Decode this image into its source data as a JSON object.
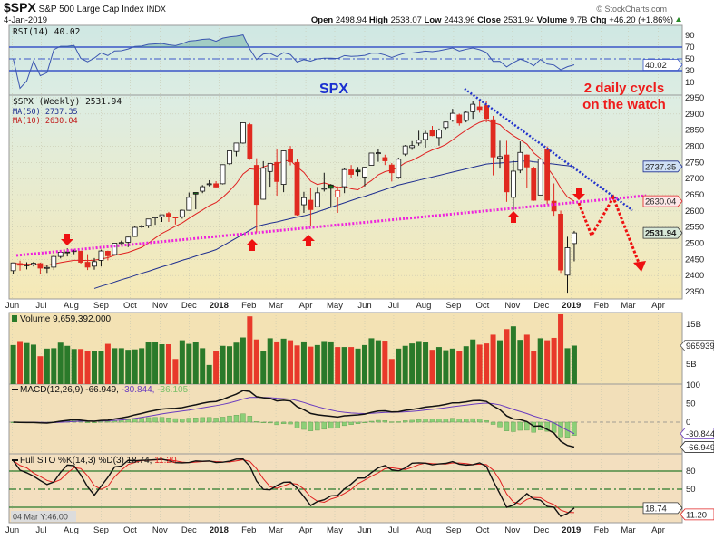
{
  "header": {
    "symbol": "$SPX",
    "name": "S&P 500 Large Cap Index",
    "exchange": "INDX",
    "date": "4-Jan-2019",
    "brand": "© StockCharts.com",
    "open_label": "Open",
    "open": "2498.94",
    "high_label": "High",
    "high": "2538.07",
    "low_label": "Low",
    "low": "2443.96",
    "close_label": "Close",
    "close": "2531.94",
    "volume_label": "Volume",
    "volume": "9.7B",
    "chg_label": "Chg",
    "chg": "+46.20 (+1.86%)"
  },
  "annotations": {
    "spx": "SPX",
    "note_line1": "2 daily cycls",
    "note_line2": "on the watch"
  },
  "colors": {
    "up": "#2a7a2a",
    "down": "#e8392a",
    "ma50": "#1f2f8f",
    "ma10": "#e02020",
    "trend_support": "#ee22dd",
    "trend_resist": "#2233cc",
    "rsi": "#3a55b0",
    "arrow": "#ee1111"
  },
  "legends": {
    "rsi": "RSI(14) 40.02",
    "price": "$SPX (Weekly) 2531.94",
    "ma50": "MA(50) 2737.35",
    "ma10": "MA(10) 2630.04",
    "volume": "Volume 9,659,392,000",
    "macd": "MACD(12,26,9) -66.949,",
    "macd_signal": "-30.844,",
    "macd_hist": "-36.105",
    "sto": "Full STO %K(14,3) %D(3) 18.74,",
    "sto_d": "11.20"
  },
  "tags": {
    "rsi": "40.02",
    "ma50": "2737.35",
    "ma10": "2630.04",
    "close": "2531.94",
    "volume": "9659392000",
    "macd_signal": "-30.844",
    "macd": "-66.949",
    "sto_k": "18.74",
    "sto_d": "11.20"
  },
  "crosshair_readout": "04 Mar Y:46.00",
  "chart_data": {
    "type": "candlestick",
    "period": "weekly",
    "columns": [
      "date",
      "open",
      "high",
      "low",
      "close",
      "volume_billions"
    ],
    "candles": [
      [
        "2017-06-02",
        2415,
        2440,
        2405,
        2439,
        9.8
      ],
      [
        "2017-06-09",
        2437,
        2446,
        2415,
        2432,
        10.8
      ],
      [
        "2017-06-16",
        2432,
        2441,
        2419,
        2433,
        10.3
      ],
      [
        "2017-06-23",
        2434,
        2442,
        2428,
        2438,
        9.9
      ],
      [
        "2017-06-30",
        2437,
        2440,
        2406,
        2423,
        7.0
      ],
      [
        "2017-07-07",
        2425,
        2431,
        2408,
        2425,
        8.9
      ],
      [
        "2017-07-14",
        2426,
        2463,
        2417,
        2459,
        9.0
      ],
      [
        "2017-07-21",
        2459,
        2478,
        2453,
        2472,
        10.4
      ],
      [
        "2017-07-28",
        2473,
        2484,
        2459,
        2472,
        9.6
      ],
      [
        "2017-08-04",
        2477,
        2480,
        2466,
        2476,
        8.8
      ],
      [
        "2017-08-11",
        2475,
        2477,
        2437,
        2441,
        8.8
      ],
      [
        "2017-08-18",
        2441,
        2466,
        2417,
        2426,
        8.3
      ],
      [
        "2017-08-25",
        2429,
        2454,
        2418,
        2443,
        8.4
      ],
      [
        "2017-09-01",
        2447,
        2480,
        2428,
        2476,
        8.3
      ],
      [
        "2017-09-08",
        2475,
        2477,
        2447,
        2461,
        10.1
      ],
      [
        "2017-09-15",
        2465,
        2500,
        2464,
        2500,
        9.0
      ],
      [
        "2017-09-22",
        2500,
        2508,
        2496,
        2502,
        9.0
      ],
      [
        "2017-09-29",
        2503,
        2520,
        2488,
        2519,
        8.6
      ],
      [
        "2017-10-06",
        2521,
        2553,
        2520,
        2549,
        8.7
      ],
      [
        "2017-10-13",
        2553,
        2557,
        2547,
        2553,
        9.0
      ],
      [
        "2017-10-20",
        2555,
        2575,
        2547,
        2575,
        10.6
      ],
      [
        "2017-10-27",
        2580,
        2582,
        2557,
        2581,
        10.5
      ],
      [
        "2017-11-03",
        2582,
        2588,
        2566,
        2588,
        10.0
      ],
      [
        "2017-11-10",
        2592,
        2597,
        2566,
        2582,
        10.0
      ],
      [
        "2017-11-17",
        2581,
        2582,
        2558,
        2579,
        6.3
      ],
      [
        "2017-11-24",
        2582,
        2604,
        2576,
        2602,
        11.0
      ],
      [
        "2017-12-01",
        2602,
        2657,
        2601,
        2642,
        10.1
      ],
      [
        "2017-12-08",
        2657,
        2657,
        2605,
        2652,
        10.6
      ],
      [
        "2017-12-15",
        2661,
        2680,
        2655,
        2675,
        9.0
      ],
      [
        "2017-12-22",
        2684,
        2695,
        2676,
        2684,
        4.8
      ],
      [
        "2017-12-29",
        2684,
        2692,
        2673,
        2674,
        8.3
      ],
      [
        "2018-01-05",
        2684,
        2744,
        2682,
        2743,
        9.6
      ],
      [
        "2018-01-12",
        2746,
        2787,
        2742,
        2786,
        9.5
      ],
      [
        "2018-01-19",
        2784,
        2810,
        2769,
        2810,
        10.4
      ],
      [
        "2018-01-26",
        2810,
        2873,
        2808,
        2873,
        11.7
      ],
      [
        "2018-02-02",
        2867,
        2872,
        2758,
        2762,
        17.0
      ],
      [
        "2018-02-09",
        2741,
        2763,
        2533,
        2620,
        11.2
      ],
      [
        "2018-02-16",
        2636,
        2754,
        2635,
        2732,
        8.4
      ],
      [
        "2018-02-23",
        2722,
        2747,
        2675,
        2747,
        11.5
      ],
      [
        "2018-03-02",
        2750,
        2790,
        2647,
        2691,
        10.7
      ],
      [
        "2018-03-09",
        2682,
        2787,
        2658,
        2786,
        11.4
      ],
      [
        "2018-03-16",
        2790,
        2801,
        2741,
        2752,
        11.0
      ],
      [
        "2018-03-23",
        2750,
        2762,
        2585,
        2588,
        9.7
      ],
      [
        "2018-03-29",
        2619,
        2659,
        2594,
        2641,
        10.7
      ],
      [
        "2018-04-06",
        2633,
        2672,
        2553,
        2604,
        9.4
      ],
      [
        "2018-04-13",
        2613,
        2674,
        2611,
        2656,
        9.8
      ],
      [
        "2018-04-20",
        2670,
        2718,
        2660,
        2670,
        10.8
      ],
      [
        "2018-04-27",
        2680,
        2683,
        2613,
        2670,
        10.7
      ],
      [
        "2018-05-04",
        2643,
        2676,
        2594,
        2663,
        9.3
      ],
      [
        "2018-05-11",
        2675,
        2732,
        2655,
        2728,
        9.3
      ],
      [
        "2018-05-18",
        2727,
        2742,
        2701,
        2713,
        9.3
      ],
      [
        "2018-05-25",
        2726,
        2736,
        2708,
        2721,
        8.9
      ],
      [
        "2018-06-01",
        2705,
        2736,
        2676,
        2735,
        9.8
      ],
      [
        "2018-06-08",
        2741,
        2779,
        2741,
        2779,
        11.5
      ],
      [
        "2018-06-15",
        2780,
        2791,
        2752,
        2780,
        11.0
      ],
      [
        "2018-06-22",
        2765,
        2774,
        2742,
        2755,
        10.9
      ],
      [
        "2018-06-29",
        2742,
        2748,
        2691,
        2718,
        6.3
      ],
      [
        "2018-07-06",
        2704,
        2765,
        2699,
        2760,
        8.9
      ],
      [
        "2018-07-13",
        2776,
        2804,
        2770,
        2801,
        9.6
      ],
      [
        "2018-07-20",
        2796,
        2816,
        2789,
        2802,
        10.2
      ],
      [
        "2018-07-27",
        2810,
        2848,
        2802,
        2819,
        10.8
      ],
      [
        "2018-08-03",
        2821,
        2848,
        2796,
        2840,
        10.5
      ],
      [
        "2018-08-10",
        2849,
        2863,
        2831,
        2833,
        8.6
      ],
      [
        "2018-08-17",
        2827,
        2855,
        2802,
        2850,
        9.3
      ],
      [
        "2018-08-24",
        2858,
        2876,
        2853,
        2875,
        8.5
      ],
      [
        "2018-08-31",
        2881,
        2916,
        2876,
        2902,
        8.9
      ],
      [
        "2018-09-07",
        2897,
        2901,
        2864,
        2872,
        8.2
      ],
      [
        "2018-09-14",
        2880,
        2908,
        2874,
        2905,
        9.5
      ],
      [
        "2018-09-21",
        2907,
        2940,
        2885,
        2930,
        11.2
      ],
      [
        "2018-09-28",
        2922,
        2940,
        2904,
        2914,
        9.9
      ],
      [
        "2018-10-05",
        2926,
        2940,
        2874,
        2886,
        10.2
      ],
      [
        "2018-10-12",
        2882,
        2894,
        2710,
        2767,
        12.4
      ],
      [
        "2018-10-19",
        2763,
        2817,
        2731,
        2768,
        11.0
      ],
      [
        "2018-10-26",
        2773,
        2817,
        2628,
        2659,
        13.8
      ],
      [
        "2018-11-02",
        2642,
        2756,
        2603,
        2723,
        14.5
      ],
      [
        "2018-11-09",
        2726,
        2815,
        2717,
        2781,
        11.1
      ],
      [
        "2018-11-16",
        2773,
        2775,
        2670,
        2736,
        12.4
      ],
      [
        "2018-11-21",
        2730,
        2737,
        2631,
        2633,
        8.3
      ],
      [
        "2018-11-30",
        2649,
        2760,
        2649,
        2760,
        11.5
      ],
      [
        "2018-12-07",
        2790,
        2800,
        2621,
        2633,
        11.0
      ],
      [
        "2018-12-14",
        2630,
        2685,
        2585,
        2600,
        11.6
      ],
      [
        "2018-12-21",
        2590,
        2601,
        2408,
        2417,
        17.5
      ],
      [
        "2018-12-28",
        2401,
        2520,
        2347,
        2486,
        9.0
      ],
      [
        "2019-01-04",
        2498.94,
        2538.07,
        2443.96,
        2531.94,
        9.66
      ]
    ],
    "ma50": [
      null,
      null,
      null,
      null,
      null,
      null,
      null,
      null,
      null,
      null,
      null,
      null,
      2360,
      2367,
      2373,
      2380,
      2387,
      2393,
      2400,
      2407,
      2413,
      2420,
      2427,
      2433,
      2440,
      2447,
      2453,
      2460,
      2467,
      2473,
      2480,
      2492,
      2504,
      2516,
      2528,
      2540,
      2552,
      2557,
      2562,
      2566,
      2571,
      2576,
      2581,
      2585,
      2590,
      2597,
      2604,
      2611,
      2618,
      2625,
      2632,
      2639,
      2645,
      2652,
      2659,
      2666,
      2673,
      2680,
      2685,
      2690,
      2695,
      2700,
      2705,
      2710,
      2715,
      2720,
      2725,
      2730,
      2735,
      2740,
      2745,
      2747,
      2748,
      2750,
      2752,
      2753,
      2755,
      2752,
      2750,
      2747,
      2745,
      2742,
      2740,
      2737
    ],
    "price_axis": {
      "ylim": [
        2330,
        2960
      ],
      "ticks": [
        "2950",
        "2900",
        "2850",
        "2800",
        "2750",
        "2700",
        "2650",
        "2600",
        "2550",
        "2500",
        "2450",
        "2400",
        "2350"
      ]
    },
    "rsi_axis": {
      "ylim": [
        -10,
        107
      ],
      "ticks": [
        "90",
        "70",
        "50",
        "30",
        "10"
      ],
      "levels": [
        70,
        50,
        30
      ]
    },
    "volume_axis": {
      "ticks": [
        "15B",
        "5B"
      ],
      "tick_values": [
        15,
        5
      ]
    },
    "macd_axis": {
      "ticks": [
        "100",
        "50",
        "0"
      ],
      "tick_values": [
        100,
        50,
        0
      ]
    },
    "sto_axis": {
      "ticks": [
        "80",
        "50"
      ],
      "tick_values": [
        80,
        50
      ],
      "levels": [
        80,
        50,
        20
      ]
    },
    "x_ticks": [
      [
        "2017-06-01",
        "Jun"
      ],
      [
        "2017-07-01",
        "Jul"
      ],
      [
        "2017-08-01",
        "Aug"
      ],
      [
        "2017-09-01",
        "Sep"
      ],
      [
        "2017-10-01",
        "Oct"
      ],
      [
        "2017-11-01",
        "Nov"
      ],
      [
        "2017-12-01",
        "Dec"
      ],
      [
        "2018-01-01",
        "2018"
      ],
      [
        "2018-02-01",
        "Feb"
      ],
      [
        "2018-03-01",
        "Mar"
      ],
      [
        "2018-04-01",
        "Apr"
      ],
      [
        "2018-05-01",
        "May"
      ],
      [
        "2018-06-01",
        "Jun"
      ],
      [
        "2018-07-01",
        "Jul"
      ],
      [
        "2018-08-01",
        "Aug"
      ],
      [
        "2018-09-01",
        "Sep"
      ],
      [
        "2018-10-01",
        "Oct"
      ],
      [
        "2018-11-01",
        "Nov"
      ],
      [
        "2018-12-01",
        "Dec"
      ],
      [
        "2019-01-01",
        "2019"
      ],
      [
        "2019-02-01",
        "Feb"
      ],
      [
        "2019-03-01",
        "Mar"
      ],
      [
        "2019-04-01",
        "Apr"
      ]
    ]
  }
}
